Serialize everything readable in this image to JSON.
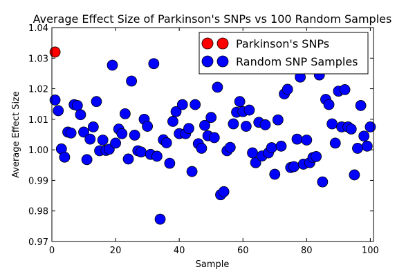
{
  "chart_data": {
    "type": "scatter",
    "title": "Average Effect Size of Parkinson's SNPs vs 100 Random Samples",
    "xlabel": "Sample",
    "ylabel": "Average Effect Size",
    "xlim": [
      0,
      101
    ],
    "ylim": [
      0.97,
      1.04
    ],
    "xticks": [
      0,
      20,
      40,
      60,
      80,
      100
    ],
    "xtick_labels": [
      "0",
      "20",
      "40",
      "60",
      "80",
      "100"
    ],
    "yticks": [
      0.97,
      0.98,
      0.99,
      1.0,
      1.01,
      1.02,
      1.03,
      1.04
    ],
    "ytick_labels": [
      "0.97",
      "0.98",
      "0.99",
      "1.00",
      "1.01",
      "1.02",
      "1.03",
      "1.04"
    ],
    "grid": false,
    "legend_position": "top-right",
    "series": [
      {
        "name": "Parkinson's SNPs",
        "color": "#ff0000",
        "points": [
          [
            1,
            1.032
          ]
        ]
      },
      {
        "name": "Random SNP Samples",
        "color": "#0000ff",
        "points": [
          [
            1,
            1.0163
          ],
          [
            2,
            1.0128
          ],
          [
            3,
            1.0003
          ],
          [
            4,
            0.9976
          ],
          [
            5,
            1.0058
          ],
          [
            6,
            1.0055
          ],
          [
            7,
            1.0148
          ],
          [
            8,
            1.0145
          ],
          [
            9,
            1.0115
          ],
          [
            10,
            1.0058
          ],
          [
            11,
            0.9968
          ],
          [
            12,
            1.0035
          ],
          [
            13,
            1.0075
          ],
          [
            14,
            1.0158
          ],
          [
            15,
            0.9997
          ],
          [
            16,
            1.0032
          ],
          [
            17,
            0.9998
          ],
          [
            18,
            1.0002
          ],
          [
            19,
            1.0277
          ],
          [
            20,
            1.0022
          ],
          [
            21,
            1.0068
          ],
          [
            22,
            1.0053
          ],
          [
            23,
            1.0118
          ],
          [
            24,
            0.997
          ],
          [
            25,
            1.0225
          ],
          [
            26,
            1.0048
          ],
          [
            27,
            0.9997
          ],
          [
            28,
            0.9993
          ],
          [
            29,
            1.01
          ],
          [
            30,
            1.0077
          ],
          [
            31,
            0.9985
          ],
          [
            32,
            1.0282
          ],
          [
            33,
            0.9979
          ],
          [
            34,
            0.9773
          ],
          [
            35,
            1.0033
          ],
          [
            36,
            1.0023
          ],
          [
            37,
            0.9956
          ],
          [
            38,
            1.0093
          ],
          [
            39,
            1.0125
          ],
          [
            40,
            1.0053
          ],
          [
            41,
            1.0148
          ],
          [
            42,
            1.0053
          ],
          [
            43,
            1.007
          ],
          [
            44,
            0.9929
          ],
          [
            45,
            1.0148
          ],
          [
            46,
            1.002
          ],
          [
            47,
            1.0005
          ],
          [
            48,
            1.008
          ],
          [
            49,
            1.0046
          ],
          [
            50,
            1.0106
          ],
          [
            51,
            1.004
          ],
          [
            52,
            1.0205
          ],
          [
            53,
            0.9853
          ],
          [
            54,
            0.9863
          ],
          [
            55,
            0.9997
          ],
          [
            56,
            1.0008
          ],
          [
            57,
            1.0085
          ],
          [
            58,
            1.0123
          ],
          [
            59,
            1.0158
          ],
          [
            60,
            1.0125
          ],
          [
            61,
            1.0077
          ],
          [
            62,
            1.013
          ],
          [
            63,
            0.999
          ],
          [
            64,
            0.9958
          ],
          [
            65,
            1.009
          ],
          [
            66,
            0.998
          ],
          [
            67,
            1.0082
          ],
          [
            68,
            0.999
          ],
          [
            69,
            1.0007
          ],
          [
            70,
            0.992
          ],
          [
            71,
            1.0098
          ],
          [
            72,
            1.0012
          ],
          [
            73,
            1.0183
          ],
          [
            74,
            1.0198
          ],
          [
            75,
            0.9942
          ],
          [
            76,
            0.9945
          ],
          [
            77,
            1.0035
          ],
          [
            78,
            1.0238
          ],
          [
            79,
            0.9953
          ],
          [
            80,
            1.0032
          ],
          [
            81,
            0.9958
          ],
          [
            82,
            0.9975
          ],
          [
            83,
            0.9978
          ],
          [
            84,
            1.0245
          ],
          [
            85,
            0.9895
          ],
          [
            86,
            1.0165
          ],
          [
            87,
            1.0148
          ],
          [
            88,
            1.0085
          ],
          [
            89,
            1.0022
          ],
          [
            90,
            1.0192
          ],
          [
            91,
            1.0075
          ],
          [
            92,
            1.0197
          ],
          [
            93,
            1.0075
          ],
          [
            94,
            1.0068
          ],
          [
            95,
            0.9918
          ],
          [
            96,
            1.0005
          ],
          [
            97,
            1.0145
          ],
          [
            98,
            1.0045
          ],
          [
            99,
            1.0012
          ],
          [
            100,
            1.0075
          ]
        ]
      }
    ]
  }
}
